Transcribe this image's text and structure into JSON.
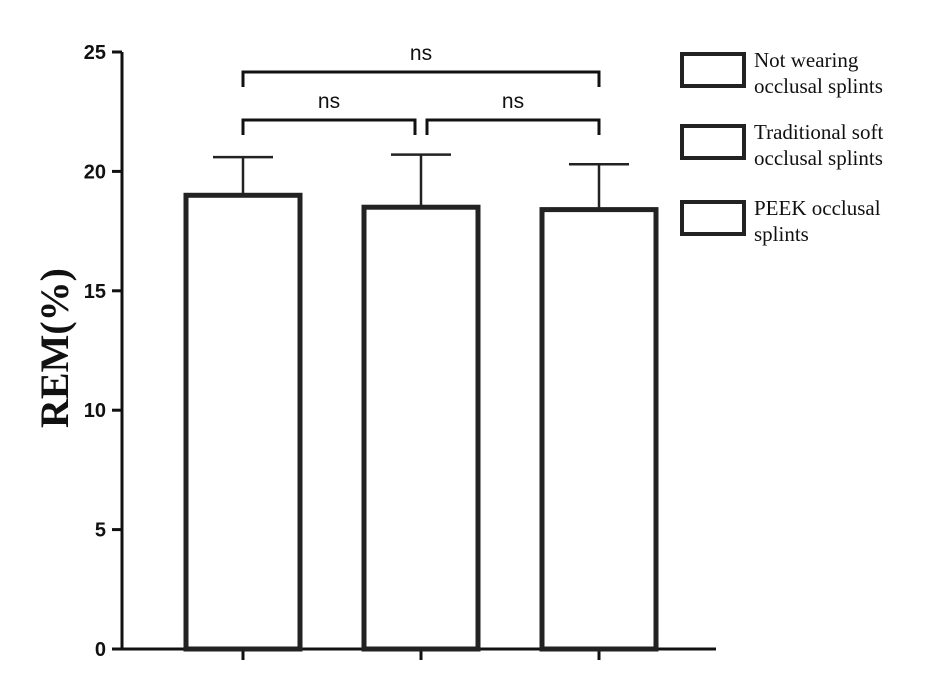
{
  "chart_data": {
    "type": "bar",
    "categories": [
      "",
      "",
      ""
    ],
    "series": [
      {
        "values": [
          19.0,
          18.5,
          18.4
        ],
        "error": [
          1.6,
          2.2,
          1.9
        ]
      }
    ],
    "title": "",
    "xlabel": "",
    "ylabel": "REM(%)",
    "ylim": [
      0,
      25
    ],
    "yticks": [
      "0",
      "5",
      "10",
      "15",
      "20",
      "25"
    ],
    "grid": false,
    "legend_position": "right",
    "legend": [
      {
        "lines": [
          "Not wearing",
          "occlusal splints"
        ]
      },
      {
        "lines": [
          "Traditional soft",
          "occlusal splints"
        ]
      },
      {
        "lines": [
          "PEEK occlusal",
          "splints"
        ]
      }
    ],
    "significance": [
      {
        "from": 0,
        "to": 2,
        "label": "ns"
      },
      {
        "from": 0,
        "to": 1,
        "label": "ns"
      },
      {
        "from": 1,
        "to": 2,
        "label": "ns"
      }
    ],
    "colors": {
      "bar_fill": "#ffffff",
      "bar_edge": "#222222",
      "axis": "#111111"
    }
  }
}
